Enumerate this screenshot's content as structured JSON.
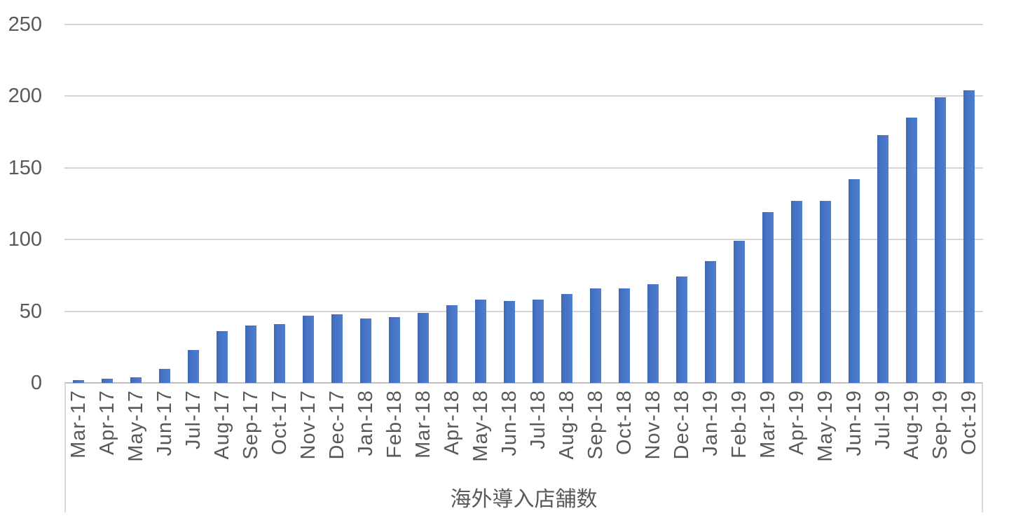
{
  "chart_data": {
    "type": "bar",
    "title": "海外導入店舗数",
    "xlabel": "海外導入店舗数",
    "ylabel": "",
    "ylim": [
      0,
      250
    ],
    "yticks": [
      0,
      50,
      100,
      150,
      200,
      250
    ],
    "grid": true,
    "legend_position": "none",
    "bar_color": "#4472C4",
    "gridline_color": "#D6D6D6",
    "axis_text_color": "#595959",
    "categories": [
      "Mar-17",
      "Apr-17",
      "May-17",
      "Jun-17",
      "Jul-17",
      "Aug-17",
      "Sep-17",
      "Oct-17",
      "Nov-17",
      "Dec-17",
      "Jan-18",
      "Feb-18",
      "Mar-18",
      "Apr-18",
      "May-18",
      "Jun-18",
      "Jul-18",
      "Aug-18",
      "Sep-18",
      "Oct-18",
      "Nov-18",
      "Dec-18",
      "Jan-19",
      "Feb-19",
      "Mar-19",
      "Apr-19",
      "May-19",
      "Jun-19",
      "Jul-19",
      "Aug-19",
      "Sep-19",
      "Oct-19"
    ],
    "values": [
      2,
      3,
      4,
      10,
      23,
      36,
      40,
      41,
      47,
      48,
      45,
      46,
      49,
      54,
      58,
      57,
      58,
      62,
      66,
      66,
      69,
      74,
      85,
      99,
      119,
      127,
      127,
      142,
      173,
      185,
      199,
      204
    ]
  }
}
